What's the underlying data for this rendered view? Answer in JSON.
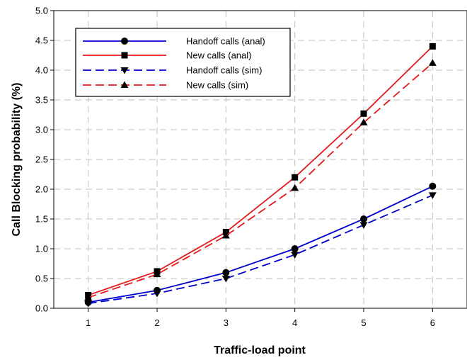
{
  "chart_data": {
    "type": "line",
    "xlabel": "Traffic-load point",
    "ylabel": "Call Blocking probability (%)",
    "x": [
      1,
      2,
      3,
      4,
      5,
      6
    ],
    "xlim": [
      0.5,
      6.5
    ],
    "ylim": [
      0,
      5
    ],
    "x_ticks": [
      "1",
      "2",
      "3",
      "4",
      "5",
      "6"
    ],
    "y_ticks": [
      "0.0",
      "0.5",
      "1.0",
      "1.5",
      "2.0",
      "2.5",
      "3.0",
      "3.5",
      "4.0",
      "4.5",
      "5.0"
    ],
    "grid": true,
    "legend_position": "top-left",
    "series": [
      {
        "name": "Handoff calls (anal)",
        "values": [
          0.1,
          0.3,
          0.6,
          1.0,
          1.5,
          2.05
        ],
        "color": "#0000cc",
        "line": "solid",
        "marker": "circle"
      },
      {
        "name": "New calls (anal)",
        "values": [
          0.22,
          0.62,
          1.28,
          2.2,
          3.27,
          4.4
        ],
        "color": "#e31a1c",
        "line": "solid",
        "marker": "square"
      },
      {
        "name": "Handoff calls (sim)",
        "values": [
          0.08,
          0.25,
          0.5,
          0.9,
          1.4,
          1.9
        ],
        "color": "#0000cc",
        "line": "dashed",
        "marker": "triangle-down"
      },
      {
        "name": "New calls (sim)",
        "values": [
          0.18,
          0.57,
          1.22,
          2.02,
          3.12,
          4.12
        ],
        "color": "#e31a1c",
        "line": "dashed",
        "marker": "triangle-up"
      }
    ]
  }
}
